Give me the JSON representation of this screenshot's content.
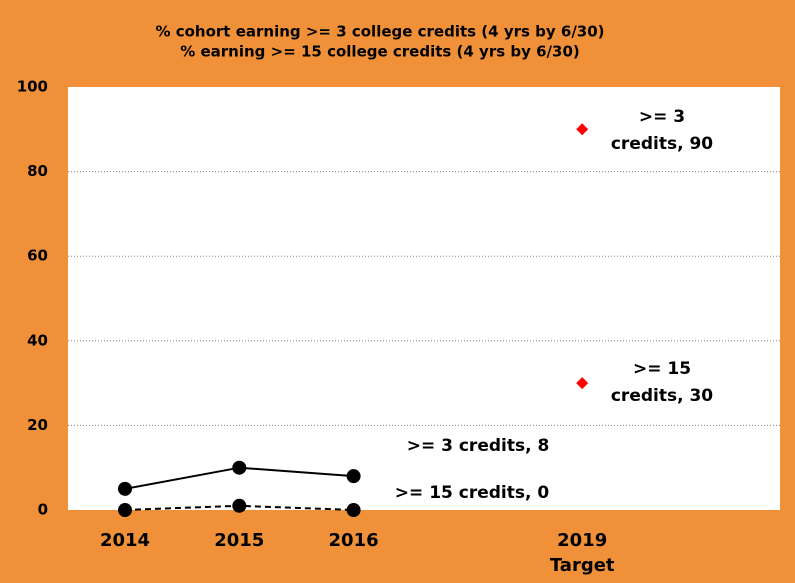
{
  "chart_data": {
    "type": "line",
    "title": [
      "% cohort earning >= 3 college credits (4 yrs by 6/30)",
      "% earning >= 15 college credits (4 yrs by 6/30)"
    ],
    "categories": [
      "2014",
      "2015",
      "2016",
      null,
      "2019"
    ],
    "category_sublabel": "Target",
    "series": [
      {
        "color": "#000000",
        "style": "solid",
        "marker": "circle",
        "values": [
          5,
          10,
          8,
          null,
          null
        ]
      },
      {
        "color": "#000000",
        "style": "dashed",
        "marker": "circle",
        "values": [
          0,
          1,
          0,
          null,
          null
        ]
      },
      {
        "color": "#ff0000",
        "style": "none",
        "marker": "diamond",
        "values": [
          null,
          null,
          null,
          null,
          90
        ]
      },
      {
        "color": "#ff0000",
        "style": "none",
        "marker": "diamond",
        "values": [
          null,
          null,
          null,
          null,
          30
        ]
      }
    ],
    "annotations": [
      [
        "&gt;= 3  credits, 8"
      ],
      [
        "&gt;= 15 credits, 0"
      ],
      [
        "&gt;= 3",
        "credits, 90"
      ],
      [
        "&gt;= 15",
        "credits, 30"
      ]
    ],
    "ylim": [
      0,
      100
    ],
    "yticks": [
      0,
      20,
      40,
      60,
      80,
      100
    ],
    "grid": true
  }
}
